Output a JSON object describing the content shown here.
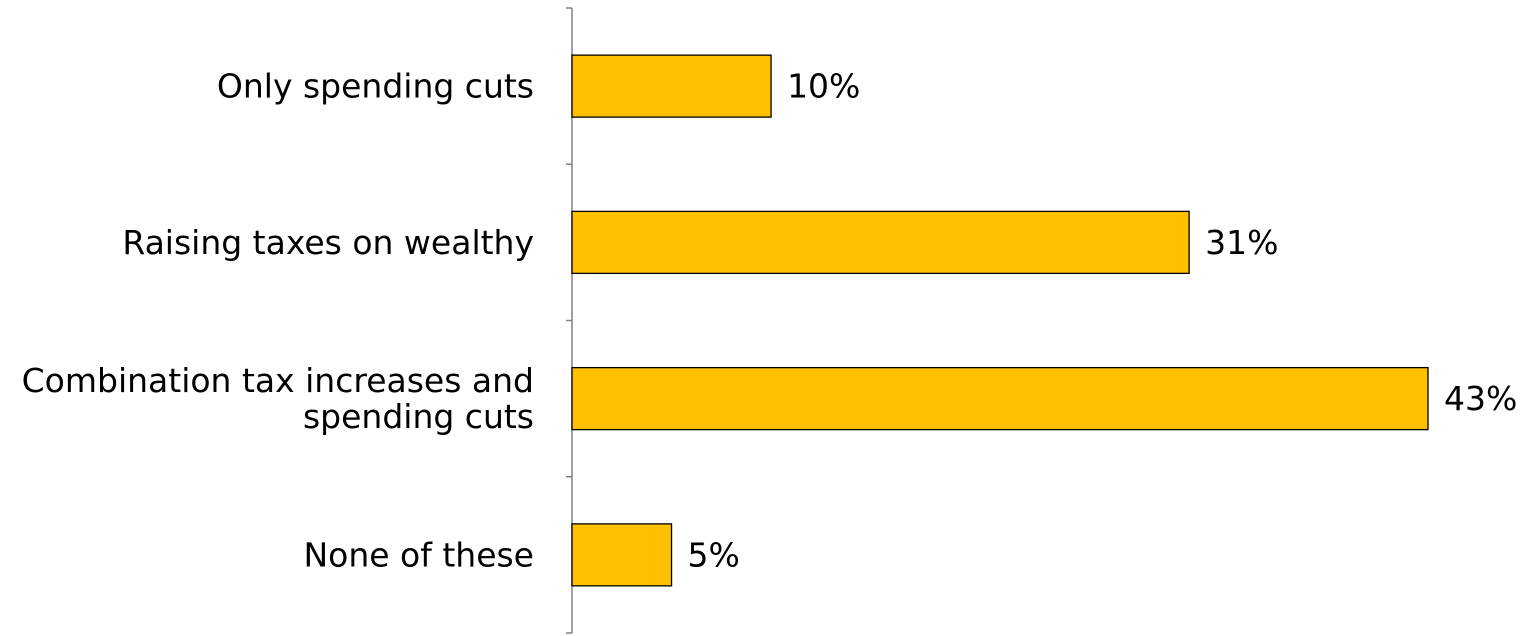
{
  "chart_data": {
    "type": "bar",
    "orientation": "horizontal",
    "title": "",
    "xlabel": "",
    "ylabel": "",
    "categories": [
      [
        "Only spending cuts"
      ],
      [
        "Raising taxes on wealthy"
      ],
      [
        "Combination tax increases and",
        "spending cuts"
      ],
      [
        "None of these"
      ]
    ],
    "values": [
      10,
      31,
      43,
      5
    ],
    "value_labels": [
      "10%",
      "31%",
      "43%",
      "5%"
    ],
    "xlim": [
      0,
      43
    ],
    "grid": false,
    "legend": "none",
    "colors": {
      "bar_fill": "#FFC000",
      "bar_stroke": "#000000",
      "axis": "#808080",
      "text": "#000000"
    }
  }
}
